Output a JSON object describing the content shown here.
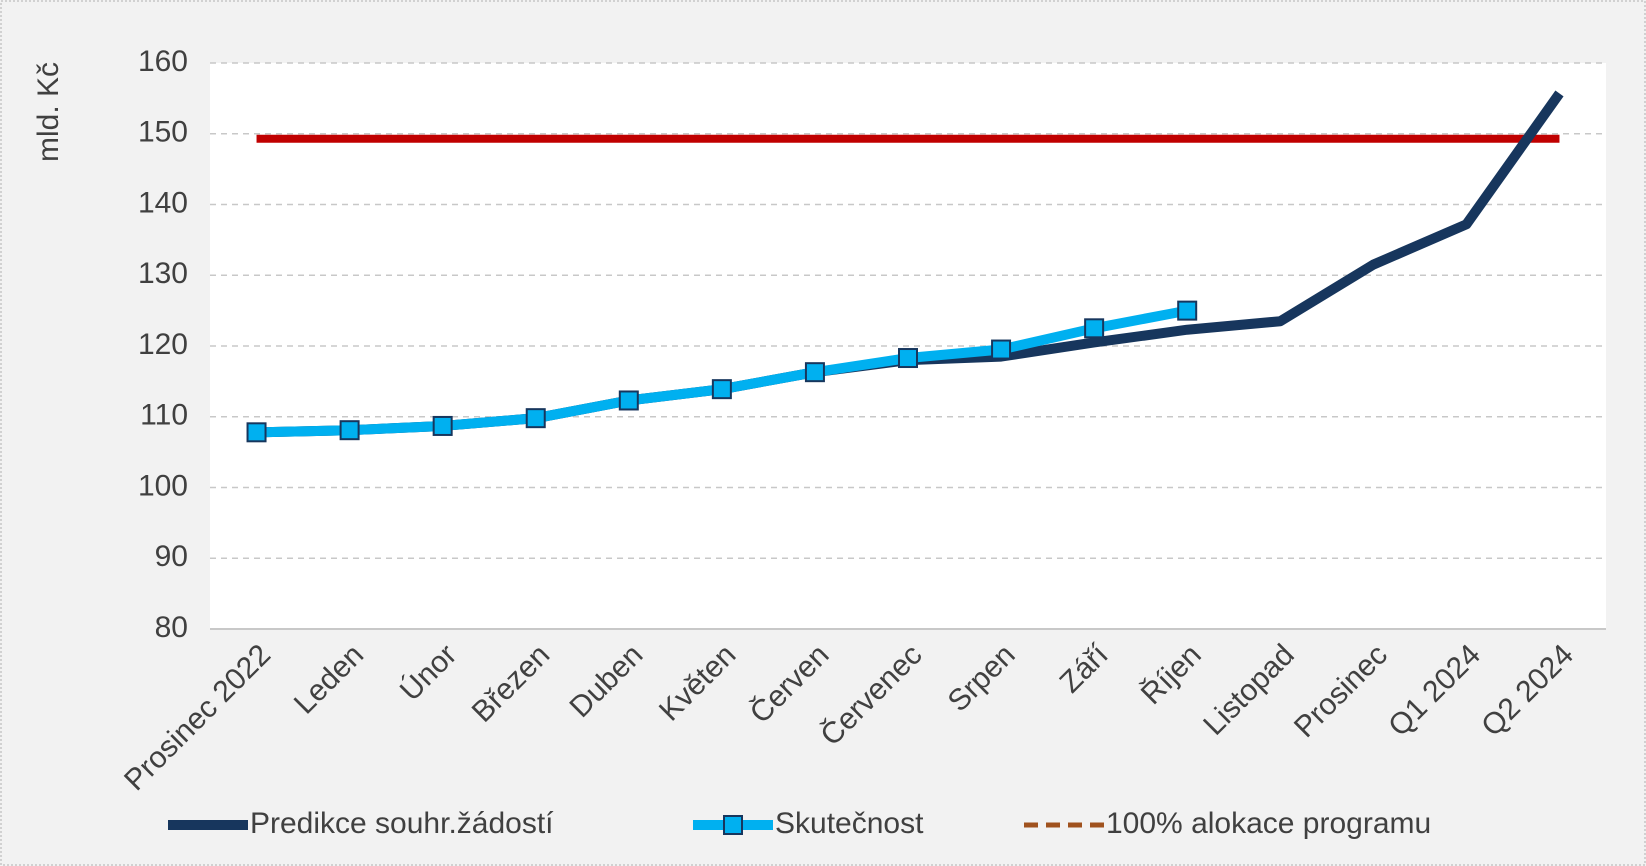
{
  "chart_data": {
    "type": "line",
    "y_label": "mld. Kč",
    "categories": [
      "Prosinec 2022",
      "Leden",
      "Únor",
      "Březen",
      "Duben",
      "Květen",
      "Červen",
      "Červenec",
      "Srpen",
      "Září",
      "Říjen",
      "Listopad",
      "Prosinec",
      "Q1 2024",
      "Q2 2024"
    ],
    "series": [
      {
        "name": "Predikce souhr.žádostí",
        "color": "#17365d",
        "values": [
          107.8,
          108.1,
          108.7,
          109.8,
          112.3,
          113.9,
          116.3,
          118.0,
          118.5,
          120.5,
          122.3,
          123.5,
          131.5,
          137.2,
          155.7
        ]
      },
      {
        "name": "Skutečnost",
        "color": "#00b0f0",
        "marker": "square",
        "values": [
          107.8,
          108.1,
          108.7,
          109.8,
          112.3,
          113.9,
          116.3,
          118.3,
          119.5,
          122.5,
          125.0,
          null,
          null,
          null,
          null
        ]
      },
      {
        "name": "100% alokace programu",
        "color": "#c00000",
        "legend_color": "#a0521e",
        "legend_dash": true,
        "values": [
          149.3,
          149.3,
          149.3,
          149.3,
          149.3,
          149.3,
          149.3,
          149.3,
          149.3,
          149.3,
          149.3,
          149.3,
          149.3,
          149.3,
          149.3
        ]
      }
    ],
    "ylim": [
      80,
      160
    ],
    "yticks": [
      80,
      90,
      100,
      110,
      120,
      130,
      140,
      150,
      160
    ],
    "grid": true,
    "legend": "bottom"
  }
}
